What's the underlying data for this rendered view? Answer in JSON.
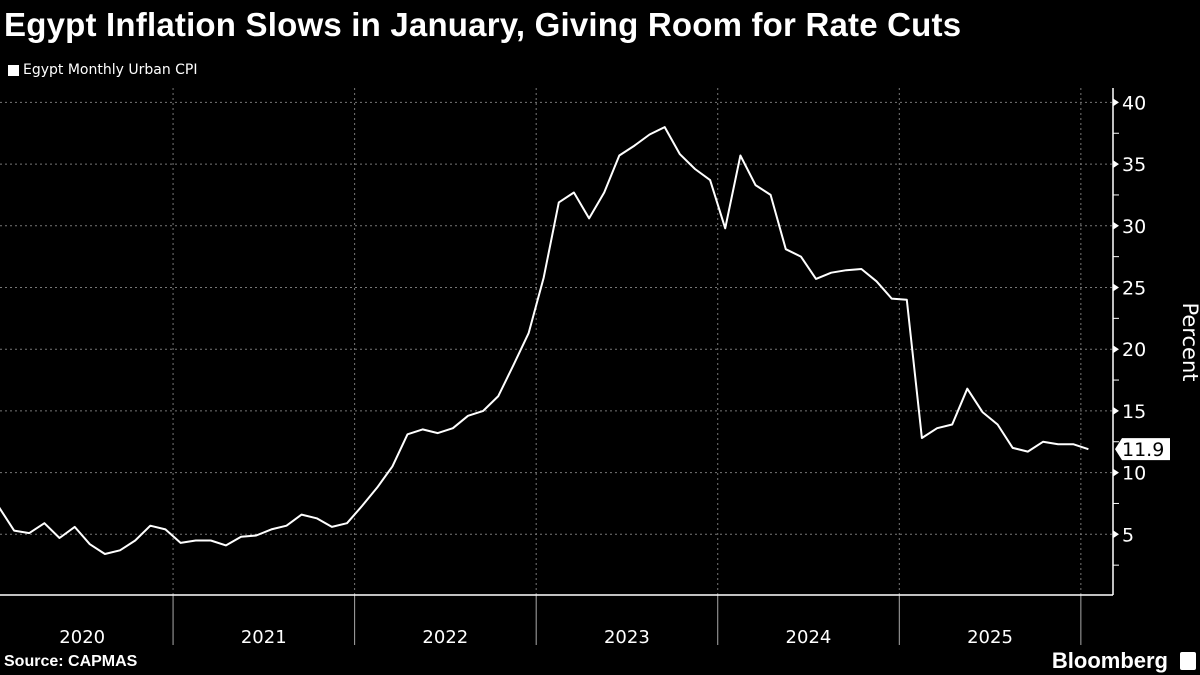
{
  "title": "Egypt Inflation Slows in January, Giving Room for Rate Cuts",
  "source": "Source: CAPMAS",
  "brand": "Bloomberg",
  "chart_data": {
    "type": "line",
    "title": "Egypt Inflation Slows in January, Giving Room for Rate Cuts",
    "ylabel": "Percent",
    "xlabel": "",
    "ylim": [
      0,
      42
    ],
    "yticks": [
      5,
      10,
      15,
      20,
      25,
      30,
      35,
      40
    ],
    "xticks": [
      "2020",
      "2021",
      "2022",
      "2023",
      "2024",
      "2025"
    ],
    "grid": true,
    "legend_position": "top-left",
    "last_value_label": "11.9",
    "x_start": "2020-01",
    "x_end": "2026-01",
    "frequency": "monthly",
    "series": [
      {
        "name": "Egypt Monthly Urban CPI",
        "color": "#ffffff",
        "values": [
          7.2,
          5.3,
          5.1,
          5.9,
          4.7,
          5.6,
          4.2,
          3.4,
          3.7,
          4.5,
          5.7,
          5.4,
          4.3,
          4.5,
          4.5,
          4.1,
          4.8,
          4.9,
          5.4,
          5.7,
          6.6,
          6.3,
          5.6,
          5.9,
          7.3,
          8.8,
          10.5,
          13.1,
          13.5,
          13.2,
          13.6,
          14.6,
          15.0,
          16.2,
          18.7,
          21.3,
          25.8,
          31.9,
          32.7,
          30.6,
          32.7,
          35.7,
          36.5,
          37.4,
          38.0,
          35.8,
          34.6,
          33.7,
          29.8,
          35.7,
          33.3,
          32.5,
          28.1,
          27.5,
          25.7,
          26.2,
          26.4,
          26.5,
          25.5,
          24.1,
          24.0,
          12.8,
          13.6,
          13.9,
          16.8,
          14.9,
          13.9,
          12.0,
          11.7,
          12.5,
          12.3,
          12.3,
          11.9
        ]
      }
    ]
  }
}
